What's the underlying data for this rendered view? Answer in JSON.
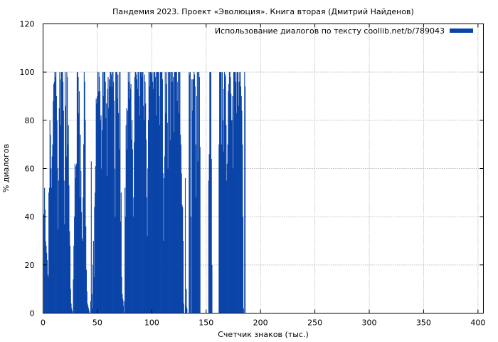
{
  "chart_data": {
    "type": "bar",
    "title": "Пандемия 2023. Проект «Эволюция». Книга вторая (Дмитрий Найденов)",
    "xlabel": "Счетчик знаков (тыс.)",
    "ylabel": "% диалогов",
    "xlim": [
      0,
      405
    ],
    "ylim": [
      0,
      120
    ],
    "x_ticks": [
      0,
      50,
      100,
      150,
      200,
      250,
      300,
      350,
      400
    ],
    "y_ticks": [
      0,
      20,
      40,
      60,
      80,
      100,
      120
    ],
    "grid": true,
    "legend_position": "top-right",
    "colors": {
      "series": "#0b44a8",
      "grid": "#a0a0a0",
      "axis": "#000000"
    },
    "series": [
      {
        "name": "Использование диалогов по тексту coollib.net/b/789043",
        "bar_width": 0.5,
        "values": [
          0,
          41,
          52,
          43,
          30,
          28,
          25,
          22,
          16,
          15,
          50,
          52,
          80,
          74,
          60,
          52,
          65,
          70,
          88,
          95,
          96,
          100,
          98,
          100,
          90,
          80,
          60,
          35,
          55,
          85,
          100,
          97,
          78,
          100,
          100,
          100,
          96,
          84,
          55,
          37,
          100,
          86,
          65,
          100,
          98,
          70,
          78,
          53,
          34,
          28,
          10,
          4,
          2,
          1,
          0,
          14,
          28,
          40,
          62,
          56,
          61,
          62,
          100,
          100,
          98,
          83,
          92,
          48,
          74,
          59,
          42,
          31,
          30,
          48,
          70,
          100,
          96,
          80,
          36,
          18,
          9,
          4,
          3,
          2,
          1,
          0,
          0,
          5,
          63,
          8,
          2,
          20,
          30,
          15,
          44,
          50,
          61,
          89,
          87,
          90,
          100,
          92,
          100,
          98,
          92,
          80,
          82,
          60,
          76,
          100,
          90,
          100,
          100,
          100,
          96,
          81,
          87,
          57,
          93,
          98,
          85,
          97,
          94,
          100,
          100,
          99,
          94,
          100,
          100,
          96,
          88,
          60,
          40,
          100,
          100,
          100,
          89,
          99,
          83,
          68,
          100,
          100,
          38,
          50,
          15,
          8,
          6,
          3,
          5,
          0,
          52,
          40,
          78,
          85,
          68,
          84,
          100,
          96,
          89,
          100,
          93,
          95,
          72,
          80,
          68,
          40,
          48,
          71,
          98,
          100,
          100,
          99,
          97,
          93,
          100,
          100,
          90,
          82,
          100,
          100,
          100,
          98,
          100,
          100,
          86,
          80,
          99,
          96,
          87,
          72,
          48,
          32,
          60,
          80,
          100,
          94,
          100,
          100,
          100,
          99,
          100,
          96,
          93,
          100,
          100,
          100,
          98,
          82,
          100,
          100,
          100,
          100,
          100,
          90,
          78,
          100,
          100,
          100,
          100,
          97,
          58,
          30,
          56,
          65,
          100,
          83,
          95,
          100,
          79,
          60,
          100,
          100,
          100,
          72,
          100,
          96,
          100,
          100,
          96,
          98,
          75,
          100,
          100,
          100,
          100,
          100,
          88,
          96,
          100,
          83,
          100,
          100,
          74,
          70,
          58,
          45,
          44,
          30,
          4,
          0,
          0,
          56,
          3,
          10,
          2,
          0,
          0,
          0,
          100,
          99,
          100,
          40,
          0,
          97,
          84,
          97,
          97,
          100,
          99,
          94,
          70,
          48,
          90,
          100,
          63,
          100,
          100,
          98,
          69,
          0,
          0,
          0,
          0,
          0,
          0,
          0,
          0,
          0,
          0,
          0,
          0,
          0,
          0,
          0,
          55,
          66,
          100,
          100,
          100,
          64,
          20,
          0,
          0,
          0,
          0,
          0,
          0,
          0,
          0,
          0,
          0,
          0,
          0,
          70,
          100,
          100,
          100,
          100,
          70,
          100,
          80,
          67,
          93,
          100,
          98,
          99,
          78,
          55,
          62,
          70,
          92,
          95,
          100,
          100,
          98,
          91,
          80,
          80,
          90,
          60,
          100,
          100,
          100,
          100,
          96,
          83,
          100,
          100,
          100,
          86,
          96,
          100,
          100,
          94,
          90,
          84,
          70,
          40,
          2,
          0,
          100,
          94,
          0,
          0
        ]
      }
    ]
  }
}
